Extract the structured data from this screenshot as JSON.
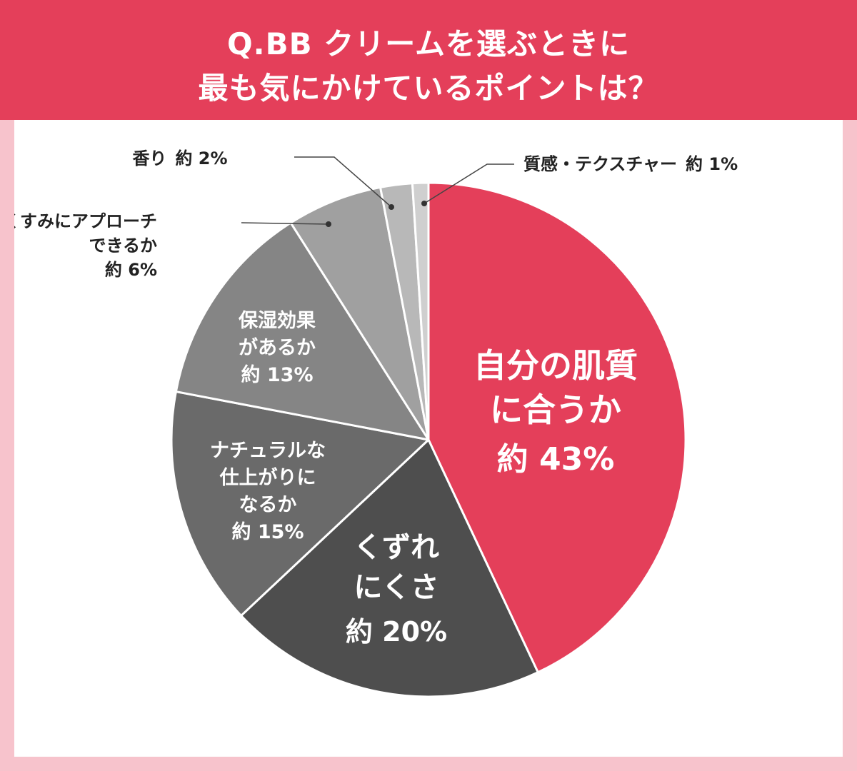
{
  "header": {
    "title_line1": "Q.BB クリームを選ぶときに",
    "title_line2": "最も気にかけているポイントは？"
  },
  "chart_data": {
    "type": "pie",
    "title": "Q.BB クリームを選ぶときに 最も気にかけているポイントは？",
    "slices": [
      {
        "label_lines": [
          "自分の肌質",
          "に合うか"
        ],
        "value_text": "約 43%",
        "value": 43,
        "color": "#e43f5a",
        "label_color": "#ffffff",
        "placement": "inside"
      },
      {
        "label_lines": [
          "くずれ",
          "にくさ"
        ],
        "value_text": "約 20%",
        "value": 20,
        "color": "#4e4e4e",
        "label_color": "#ffffff",
        "placement": "inside"
      },
      {
        "label_lines": [
          "ナチュラルな",
          "仕上がりに",
          "なるか"
        ],
        "value_text": "約 15%",
        "value": 15,
        "color": "#6a6a6a",
        "label_color": "#ffffff",
        "placement": "inside"
      },
      {
        "label_lines": [
          "保湿効果",
          "があるか"
        ],
        "value_text": "約 13%",
        "value": 13,
        "color": "#858585",
        "label_color": "#ffffff",
        "placement": "inside"
      },
      {
        "label_lines": [
          "くすみにアプローチ",
          "できるか"
        ],
        "value_text": "約 6%",
        "value": 6,
        "color": "#a0a0a0",
        "label_color": "#222222",
        "placement": "outside"
      },
      {
        "label_lines": [
          "香り"
        ],
        "value_text": "約 2%",
        "value": 2,
        "color": "#b8b8b8",
        "label_color": "#222222",
        "placement": "outside"
      },
      {
        "label_lines": [
          "質感・テクスチャー"
        ],
        "value_text": "約 1%",
        "value": 1,
        "color": "#cfcfcf",
        "label_color": "#222222",
        "placement": "outside"
      }
    ]
  }
}
